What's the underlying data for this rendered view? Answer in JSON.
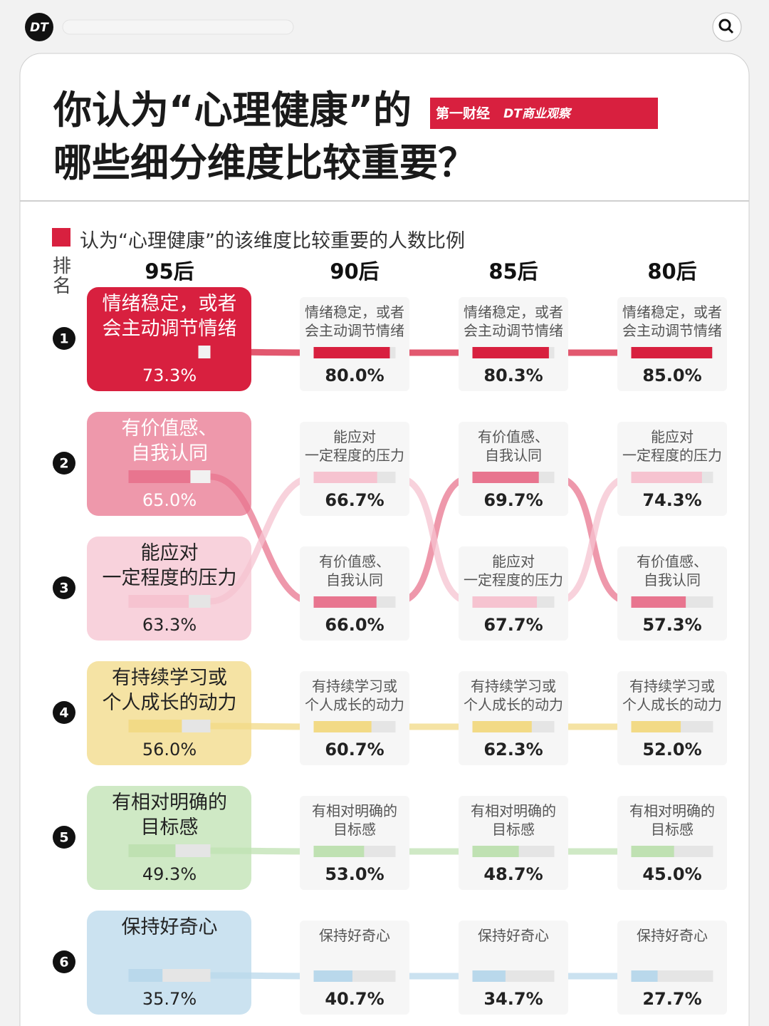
{
  "app_logo": "DT",
  "chart_data": {
    "type": "bump",
    "title": "你认为“心理健康”的\n哪些细分维度比较重要？",
    "partners": [
      "第一财经",
      "DT商业观察"
    ],
    "legend": "认为“心理健康”的该维度比较重要的人数比例",
    "legend_color": "#d8203f",
    "rank_label": "排名",
    "ranks": [
      1,
      2,
      3,
      4,
      5,
      6
    ],
    "categories": [
      "95后",
      "90后",
      "85后",
      "80后"
    ],
    "xlim": [
      0,
      86
    ],
    "series": [
      {
        "name": "情绪稳定，或者\n会主动调节情绪",
        "color": "#d8203f",
        "values": [
          73.3,
          80.0,
          80.3,
          85.0
        ],
        "value_labels": [
          "73.3%",
          "80.0%",
          "80.3%",
          "85.0%"
        ]
      },
      {
        "name": "有价值感、\n自我认同",
        "color": "#e8758f",
        "values": [
          65.0,
          66.0,
          69.7,
          57.3
        ],
        "value_labels": [
          "65.0%",
          "66.0%",
          "69.7%",
          "57.3%"
        ]
      },
      {
        "name": "能应对\n一定程度的压力",
        "color": "#f6c3d0",
        "values": [
          63.3,
          66.7,
          67.7,
          74.3
        ],
        "value_labels": [
          "63.3%",
          "66.7%",
          "67.7%",
          "74.3%"
        ]
      },
      {
        "name": "有持续学习或\n个人成长的动力",
        "color": "#f2da86",
        "values": [
          56.0,
          60.7,
          62.3,
          52.0
        ],
        "value_labels": [
          "56.0%",
          "60.7%",
          "62.3%",
          "52.0%"
        ]
      },
      {
        "name": "有相对明确的\n目标感",
        "color": "#bfe1b2",
        "values": [
          49.3,
          53.0,
          48.7,
          45.0
        ],
        "value_labels": [
          "49.3%",
          "53.0%",
          "48.7%",
          "45.0%"
        ]
      },
      {
        "name": "保持好奇心",
        "color": "#b9d8eb",
        "values": [
          35.7,
          40.7,
          34.7,
          27.7
        ],
        "value_labels": [
          "35.7%",
          "40.7%",
          "34.7%",
          "27.7%"
        ]
      }
    ]
  }
}
